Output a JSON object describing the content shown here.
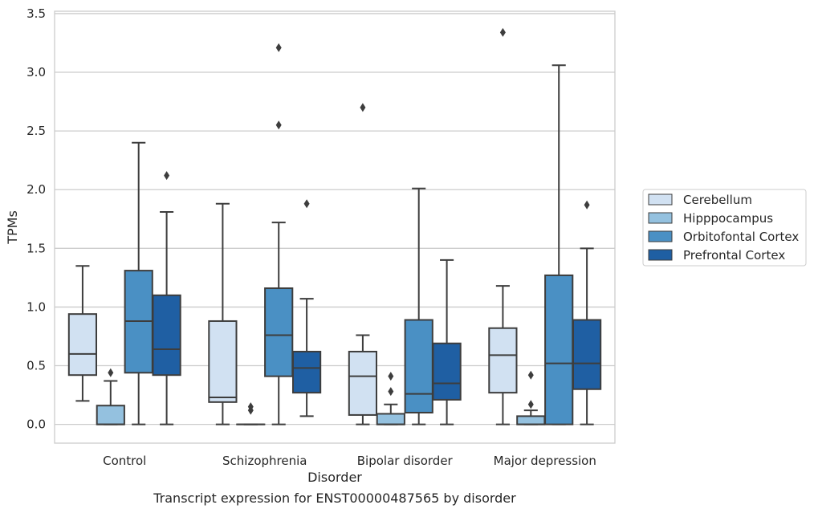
{
  "chart_data": {
    "type": "box",
    "title": "",
    "caption": "Transcript expression for ENST00000487565 by disorder",
    "xlabel": "Disorder",
    "ylabel": "TPMs",
    "ylim": [
      -0.16,
      3.52
    ],
    "yticks": [
      "0.0",
      "0.5",
      "1.0",
      "1.5",
      "2.0",
      "2.5",
      "3.0",
      "3.5"
    ],
    "categories": [
      "Control",
      "Schizophrenia",
      "Bipolar disorder",
      "Major depression"
    ],
    "grid": "horizontal",
    "legend_position": "right",
    "series": [
      {
        "name": "Cerebellum",
        "color": "#d1e1f2",
        "boxes": [
          {
            "whisker_low": 0.2,
            "q1": 0.42,
            "median": 0.6,
            "q3": 0.94,
            "whisker_high": 1.35,
            "outliers": []
          },
          {
            "whisker_low": 0.0,
            "q1": 0.19,
            "median": 0.23,
            "q3": 0.88,
            "whisker_high": 1.88,
            "outliers": []
          },
          {
            "whisker_low": 0.0,
            "q1": 0.08,
            "median": 0.41,
            "q3": 0.62,
            "whisker_high": 0.76,
            "outliers": [
              2.7
            ]
          },
          {
            "whisker_low": 0.0,
            "q1": 0.27,
            "median": 0.59,
            "q3": 0.82,
            "whisker_high": 1.18,
            "outliers": [
              3.34
            ]
          }
        ]
      },
      {
        "name": "Hipppocampus",
        "color": "#94c1df",
        "boxes": [
          {
            "whisker_low": 0.0,
            "q1": 0.0,
            "median": 0.0,
            "q3": 0.16,
            "whisker_high": 0.37,
            "outliers": [
              0.44
            ]
          },
          {
            "whisker_low": 0.0,
            "q1": 0.0,
            "median": 0.0,
            "q3": 0.0,
            "whisker_high": 0.0,
            "outliers": [
              0.12,
              0.15
            ]
          },
          {
            "whisker_low": 0.0,
            "q1": 0.0,
            "median": 0.0,
            "q3": 0.09,
            "whisker_high": 0.17,
            "outliers": [
              0.28,
              0.41
            ]
          },
          {
            "whisker_low": 0.0,
            "q1": 0.0,
            "median": 0.0,
            "q3": 0.07,
            "whisker_high": 0.12,
            "outliers": [
              0.17,
              0.42
            ]
          }
        ]
      },
      {
        "name": "Orbitofontal Cortex",
        "color": "#4a90c4",
        "boxes": [
          {
            "whisker_low": 0.0,
            "q1": 0.44,
            "median": 0.88,
            "q3": 1.31,
            "whisker_high": 2.4,
            "outliers": []
          },
          {
            "whisker_low": 0.0,
            "q1": 0.41,
            "median": 0.76,
            "q3": 1.16,
            "whisker_high": 1.72,
            "outliers": [
              2.55,
              3.21
            ]
          },
          {
            "whisker_low": 0.0,
            "q1": 0.1,
            "median": 0.26,
            "q3": 0.89,
            "whisker_high": 2.01,
            "outliers": []
          },
          {
            "whisker_low": 0.0,
            "q1": 0.0,
            "median": 0.52,
            "q3": 1.27,
            "whisker_high": 3.06,
            "outliers": []
          }
        ]
      },
      {
        "name": "Prefrontal Cortex",
        "color": "#1f5fa3",
        "boxes": [
          {
            "whisker_low": 0.0,
            "q1": 0.42,
            "median": 0.64,
            "q3": 1.1,
            "whisker_high": 1.81,
            "outliers": [
              2.12
            ]
          },
          {
            "whisker_low": 0.07,
            "q1": 0.27,
            "median": 0.48,
            "q3": 0.62,
            "whisker_high": 1.07,
            "outliers": [
              1.88
            ]
          },
          {
            "whisker_low": 0.0,
            "q1": 0.21,
            "median": 0.35,
            "q3": 0.69,
            "whisker_high": 1.4,
            "outliers": []
          },
          {
            "whisker_low": 0.0,
            "q1": 0.3,
            "median": 0.52,
            "q3": 0.89,
            "whisker_high": 1.5,
            "outliers": [
              1.87
            ]
          }
        ]
      }
    ]
  }
}
